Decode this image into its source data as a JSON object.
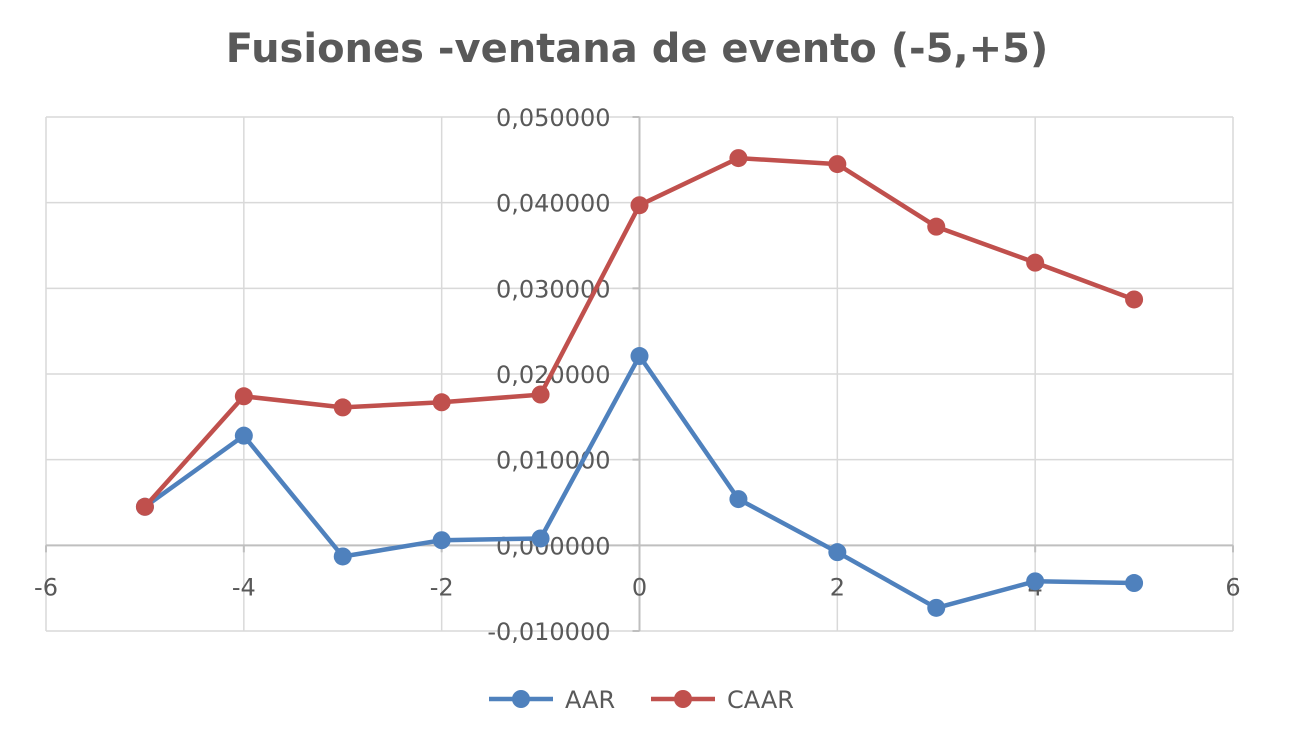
{
  "chart_data": {
    "type": "scatter",
    "title": "Fusiones -ventana de evento (-5,+5)",
    "xlabel": "",
    "ylabel": "",
    "xlim": [
      -6,
      6
    ],
    "ylim": [
      -0.01,
      0.05
    ],
    "x_ticks": [
      -6,
      -4,
      -2,
      0,
      2,
      4,
      6
    ],
    "x_tick_labels": [
      "-6",
      "-4",
      "-2",
      "0",
      "2",
      "4",
      "6"
    ],
    "y_ticks": [
      -0.01,
      0,
      0.01,
      0.02,
      0.03,
      0.04,
      0.05
    ],
    "y_tick_labels": [
      "-0,010000",
      "0,000000",
      "0,010000",
      "0,020000",
      "0,030000",
      "0,040000",
      "0,050000"
    ],
    "grid": true,
    "legend_position": "bottom",
    "series": [
      {
        "name": "AAR",
        "color": "#4f81bd",
        "x": [
          -5,
          -4,
          -3,
          -2,
          -1,
          0,
          1,
          2,
          3,
          4,
          5
        ],
        "y": [
          0.0045,
          0.0128,
          -0.0013,
          0.0006,
          0.0008,
          0.0221,
          0.0054,
          -0.0008,
          -0.0073,
          -0.0042,
          -0.0044
        ]
      },
      {
        "name": "CAAR",
        "color": "#c0504d",
        "x": [
          -5,
          -4,
          -3,
          -2,
          -1,
          0,
          1,
          2,
          3,
          4,
          5
        ],
        "y": [
          0.0045,
          0.0174,
          0.0161,
          0.0167,
          0.0176,
          0.0397,
          0.0452,
          0.0445,
          0.0372,
          0.033,
          0.0287
        ]
      }
    ]
  },
  "style": {
    "grid_color": "#d9d9d9",
    "axis_color": "#bfbfbf",
    "text_color": "#595959"
  }
}
